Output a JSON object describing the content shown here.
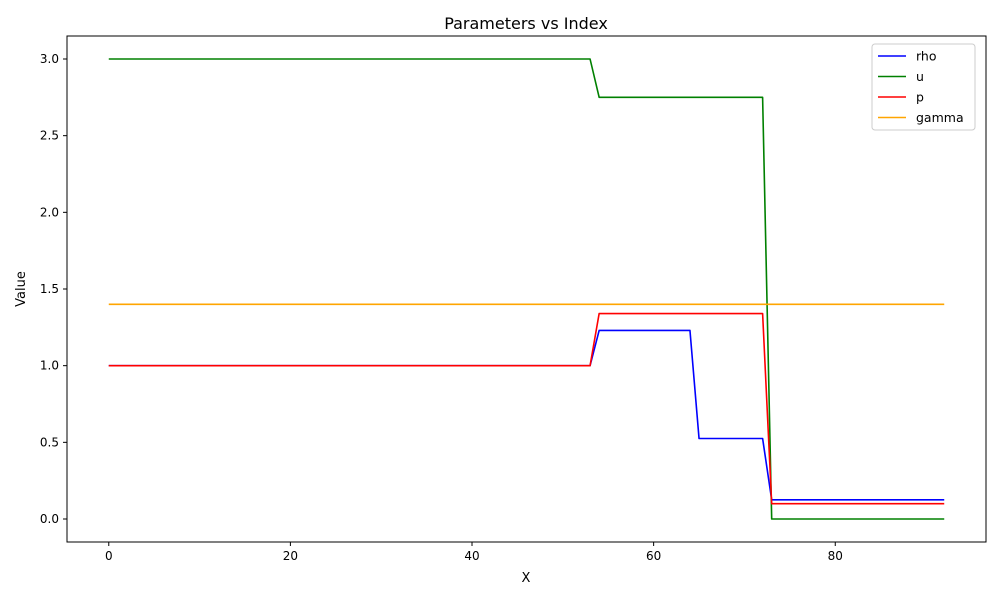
{
  "chart_data": {
    "type": "line",
    "title": "Parameters vs Index",
    "xlabel": "X",
    "ylabel": "Value",
    "xlim": [
      -4.6,
      96.6
    ],
    "ylim": [
      -0.15,
      3.15
    ],
    "xticks": [
      0,
      20,
      40,
      60,
      80
    ],
    "yticks": [
      0.0,
      0.5,
      1.0,
      1.5,
      2.0,
      2.5,
      3.0
    ],
    "xtick_labels": [
      "0",
      "20",
      "40",
      "60",
      "80"
    ],
    "ytick_labels": [
      "0.0",
      "0.5",
      "1.0",
      "1.5",
      "2.0",
      "2.5",
      "3.0"
    ],
    "legend_position": "top-right",
    "grid": false,
    "series": [
      {
        "name": "rho",
        "color": "#0000ff",
        "x": [
          0,
          53,
          54,
          64,
          65,
          72,
          73,
          92
        ],
        "values": [
          1.0,
          1.0,
          1.23,
          1.23,
          0.525,
          0.525,
          0.125,
          0.125
        ]
      },
      {
        "name": "u",
        "color": "#008000",
        "x": [
          0,
          53,
          54,
          72,
          73,
          92
        ],
        "values": [
          3.0,
          3.0,
          2.75,
          2.75,
          0.0,
          0.0
        ]
      },
      {
        "name": "p",
        "color": "#ff0000",
        "x": [
          0,
          53,
          54,
          72,
          73,
          92
        ],
        "values": [
          1.0,
          1.0,
          1.34,
          1.34,
          0.1,
          0.1
        ]
      },
      {
        "name": "gamma",
        "color": "#ffa500",
        "x": [
          0,
          92
        ],
        "values": [
          1.4,
          1.4
        ]
      }
    ]
  }
}
